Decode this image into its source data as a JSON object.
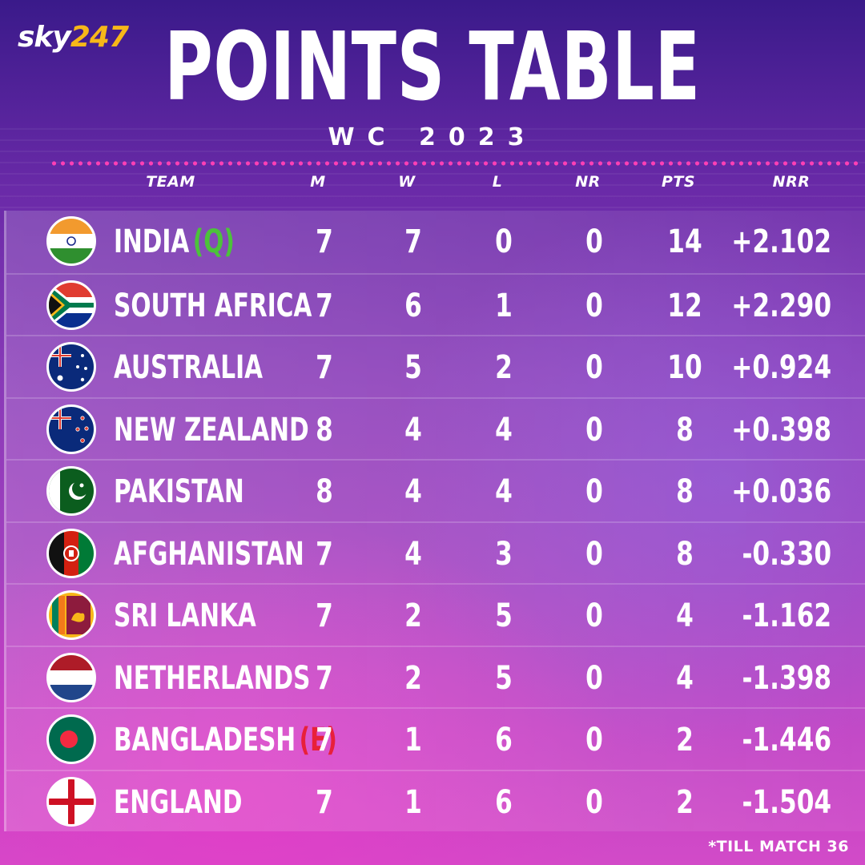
{
  "logo": {
    "part1": "sky",
    "part2": "247"
  },
  "title": "POINTS TABLE",
  "subtitle": "WC 2023",
  "headers": {
    "team": "TEAM",
    "m": "M",
    "w": "W",
    "l": "L",
    "nr": "NR",
    "pts": "PTS",
    "nrr": "NRR"
  },
  "tag_colors": {
    "qualified": "#4cc33a",
    "eliminated": "#e8203a"
  },
  "rows": [
    {
      "team": "INDIA",
      "tag": "(Q)",
      "tag_type": "qualified",
      "flag": "india-flag",
      "m": "7",
      "w": "7",
      "l": "0",
      "nr": "0",
      "pts": "14",
      "nrr": "+2.102"
    },
    {
      "team": "SOUTH AFRICA",
      "tag": "",
      "tag_type": "",
      "flag": "south-africa-flag",
      "m": "7",
      "w": "6",
      "l": "1",
      "nr": "0",
      "pts": "12",
      "nrr": "+2.290"
    },
    {
      "team": "AUSTRALIA",
      "tag": "",
      "tag_type": "",
      "flag": "australia-flag",
      "m": "7",
      "w": "5",
      "l": "2",
      "nr": "0",
      "pts": "10",
      "nrr": "+0.924"
    },
    {
      "team": "NEW ZEALAND",
      "tag": "",
      "tag_type": "",
      "flag": "new-zealand-flag",
      "m": "8",
      "w": "4",
      "l": "4",
      "nr": "0",
      "pts": "8",
      "nrr": "+0.398"
    },
    {
      "team": "PAKISTAN",
      "tag": "",
      "tag_type": "",
      "flag": "pakistan-flag",
      "m": "8",
      "w": "4",
      "l": "4",
      "nr": "0",
      "pts": "8",
      "nrr": "+0.036"
    },
    {
      "team": "AFGHANISTAN",
      "tag": "",
      "tag_type": "",
      "flag": "afghanistan-flag",
      "m": "7",
      "w": "4",
      "l": "3",
      "nr": "0",
      "pts": "8",
      "nrr": "-0.330"
    },
    {
      "team": "SRI LANKA",
      "tag": "",
      "tag_type": "",
      "flag": "sri-lanka-flag",
      "m": "7",
      "w": "2",
      "l": "5",
      "nr": "0",
      "pts": "4",
      "nrr": "-1.162"
    },
    {
      "team": "NETHERLANDS",
      "tag": "",
      "tag_type": "",
      "flag": "netherlands-flag",
      "m": "7",
      "w": "2",
      "l": "5",
      "nr": "0",
      "pts": "4",
      "nrr": "-1.398"
    },
    {
      "team": "BANGLADESH",
      "tag": "(E)",
      "tag_type": "eliminated",
      "flag": "bangladesh-flag",
      "m": "7",
      "w": "1",
      "l": "6",
      "nr": "0",
      "pts": "2",
      "nrr": "-1.446"
    },
    {
      "team": "ENGLAND",
      "tag": "",
      "tag_type": "",
      "flag": "england-flag",
      "m": "7",
      "w": "1",
      "l": "6",
      "nr": "0",
      "pts": "2",
      "nrr": "-1.504"
    }
  ],
  "footnote": "*TILL MATCH 36"
}
